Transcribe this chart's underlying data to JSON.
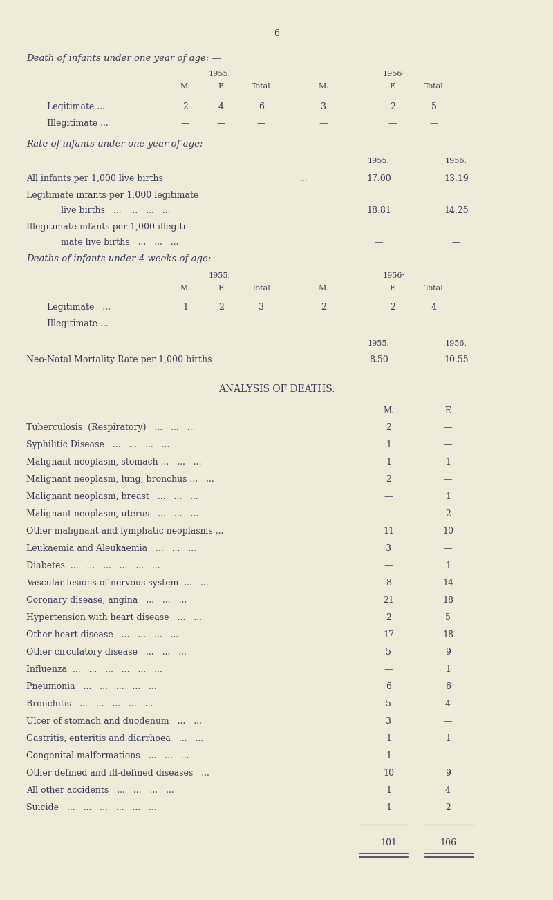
{
  "page_number": "6",
  "bg_color": "#f0ead8",
  "text_color": "#3a3a5c",
  "title1": "Death of infants under one year of age: —",
  "s1_year1": "1955.",
  "s1_year2": "1956·",
  "s1_col_headers": [
    "M.",
    "F.",
    "Total",
    "M.",
    "F.",
    "Total"
  ],
  "s1_rows": [
    [
      "Legitimate ...",
      "2",
      "4",
      "6",
      "3",
      "2",
      "5"
    ],
    [
      "Illegitimate ...",
      "—",
      "—",
      "—",
      "—",
      "—",
      "—"
    ]
  ],
  "title2": "Rate of infants under one year of age: —",
  "s2_year1": "1955.",
  "s2_year2": "1956.",
  "s2_rows": [
    [
      "All infants per 1,000 live births",
      "...",
      "17.00",
      "13.19"
    ],
    [
      "Legitimate infants per 1,000 legitimate",
      null,
      null,
      null
    ],
    [
      "    live births  ...   ...   ...   ...",
      null,
      "18.81",
      "14.25"
    ],
    [
      "Illegitimate infants per 1,000 illegiti-",
      null,
      null,
      null
    ],
    [
      "    mate live births   ...   ...   ...",
      null,
      "—",
      "—"
    ]
  ],
  "title3": "Deaths of infants under 4 weeks of age: —",
  "s3_year1": "1955.",
  "s3_year2": "1956·",
  "s3_col_headers": [
    "M.",
    "F.",
    "Total",
    "M.",
    "F.",
    "Total"
  ],
  "s3_rows": [
    [
      "Legitimate   ...",
      "1",
      "2",
      "3",
      "2",
      "2",
      "4"
    ],
    [
      "Illegitimate ...",
      "—",
      "—",
      "—",
      "—",
      "—",
      "—"
    ]
  ],
  "s3_rate_year1": "1955.",
  "s3_rate_year2": "1956.",
  "s3_rate_label": "Neo-Natal Mortality Rate per 1,000 births",
  "s3_rate_val1": "8.50",
  "s3_rate_val2": "10.55",
  "title4": "ANALYSIS OF DEATHS.",
  "analysis_col_headers": [
    "M.",
    "F."
  ],
  "analysis_rows": [
    [
      "Tuberculosis  (Respiratory)   ...   ...   ...",
      "2",
      "—"
    ],
    [
      "Syphilitic Disease   ...   ...   ...   ...",
      "1",
      "—"
    ],
    [
      "Malignant neoplasm, stomach ...   ...   ...",
      "1",
      "1"
    ],
    [
      "Malignant neoplasm, lung, bronchus ...   ...",
      "2",
      "—"
    ],
    [
      "Malignant neoplasm, breast   ...   ...   ...",
      "—",
      "1"
    ],
    [
      "Malignant neoplasm, uterus   ...   ...   ...",
      "—",
      "2"
    ],
    [
      "Other malignant and lymphatic neoplasms ...",
      "11",
      "10"
    ],
    [
      "Leukaemia and Aleukaemia   ...   ...   ...",
      "3",
      "—"
    ],
    [
      "Diabetes  ...   ...   ...   ...   ...   ...",
      "—",
      "1"
    ],
    [
      "Vascular lesions of nervous system  ...   ...",
      "8",
      "14"
    ],
    [
      "Coronary disease, angina   ...   ...   ...",
      "21",
      "18"
    ],
    [
      "Hypertension with heart disease   ...   ...",
      "2",
      "5"
    ],
    [
      "Other heart disease   ...   ...   ...   ...",
      "17",
      "18"
    ],
    [
      "Other circulatory disease   ...   ...   ...",
      "5",
      "9"
    ],
    [
      "Influenza  ...   ...   ...   ...   ...   ...",
      "—",
      "1"
    ],
    [
      "Pneumonia   ...   ...   ...   ...   ...",
      "6",
      "6"
    ],
    [
      "Bronchitis   ...   ...   ...   ...   ...",
      "5",
      "4"
    ],
    [
      "Ulcer of stomach and duodenum   ...   ...",
      "3",
      "—"
    ],
    [
      "Gastritis, enteritis and diarrhoea   ...   ...",
      "1",
      "1"
    ],
    [
      "Congenital malformations   ...   ...   ...",
      "1",
      "—"
    ],
    [
      "Other defined and ill-defined diseases   ...",
      "10",
      "9"
    ],
    [
      "All other accidents   ...   ...   ...   ...",
      "1",
      "4"
    ],
    [
      "Suicide   ...   ...   ...   ...   ...   ...",
      "1",
      "2"
    ]
  ],
  "analysis_total": [
    "101",
    "106"
  ]
}
